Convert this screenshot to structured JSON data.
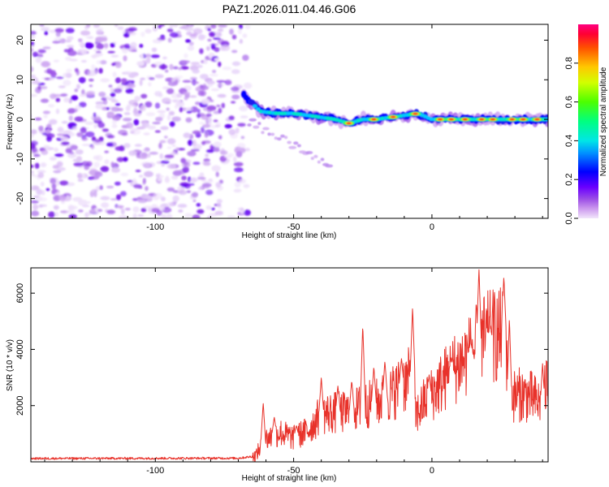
{
  "title": "PAZ1.2026.011.04.46.G06",
  "chart_data": [
    {
      "type": "heatmap",
      "name": "spectrogram",
      "xlabel": "Height of straight line (km)",
      "ylabel": "Frequency (Hz)",
      "xlim": [
        -145,
        42
      ],
      "ylim": [
        -25,
        24
      ],
      "xticks": [
        -100,
        -50,
        0
      ],
      "yticks": [
        -20,
        -10,
        0,
        10,
        20
      ],
      "noise_region_x": [
        -145,
        -67
      ],
      "signal_trace": {
        "x": [
          -68,
          -62,
          -56,
          -50,
          -45,
          -40,
          -35,
          -30,
          -25,
          -20,
          -15,
          -10,
          -5,
          0,
          5,
          10,
          15,
          20,
          25,
          30,
          35,
          40
        ],
        "freq": [
          6,
          2,
          1.5,
          1.5,
          1,
          0.5,
          0,
          -1,
          0,
          0,
          0.5,
          1,
          1.5,
          0,
          0,
          0,
          0,
          0,
          0,
          0,
          0,
          0
        ]
      },
      "colorbar": {
        "label": "Normalized spectral amplitude",
        "min": 0.0,
        "max": 1.0,
        "ticks": [
          "0.0",
          "0.2",
          "0.4",
          "0.6",
          "0.8"
        ]
      }
    },
    {
      "type": "line",
      "name": "snr",
      "xlabel": "Height of straight line (km)",
      "ylabel": "SNR (10 * v/v)",
      "xlim": [
        -145,
        42
      ],
      "ylim": [
        0,
        6900
      ],
      "xticks": [
        -100,
        -50,
        0
      ],
      "yticks": [
        2000,
        4000,
        6000
      ],
      "color": "#e8322a",
      "anchors": {
        "x": [
          -145,
          -70,
          -64,
          -60,
          -55,
          -50,
          -45,
          -40,
          -35,
          -30,
          -25,
          -20,
          -15,
          -10,
          -7,
          -6,
          -3,
          0,
          5,
          10,
          15,
          18,
          20,
          23,
          26,
          28,
          32,
          36,
          40,
          42
        ],
        "y": [
          120,
          130,
          200,
          800,
          1050,
          850,
          1100,
          1700,
          1750,
          1750,
          2000,
          2100,
          2400,
          2800,
          3000,
          1600,
          2100,
          2400,
          3000,
          3500,
          3900,
          4300,
          4400,
          4500,
          4500,
          2300,
          2400,
          2300,
          2000,
          3100
        ]
      },
      "spikes": {
        "x": [
          -61,
          -57,
          -49,
          -40,
          -34,
          -29,
          -25,
          -21,
          -17,
          -11,
          -7,
          -1,
          7,
          14,
          17,
          21,
          26,
          28,
          40
        ],
        "y": [
          2100,
          1600,
          1300,
          3000,
          2700,
          2900,
          4900,
          3400,
          3600,
          3700,
          5500,
          3100,
          3700,
          4300,
          6900,
          4800,
          6600,
          5100,
          3500
        ]
      }
    }
  ]
}
